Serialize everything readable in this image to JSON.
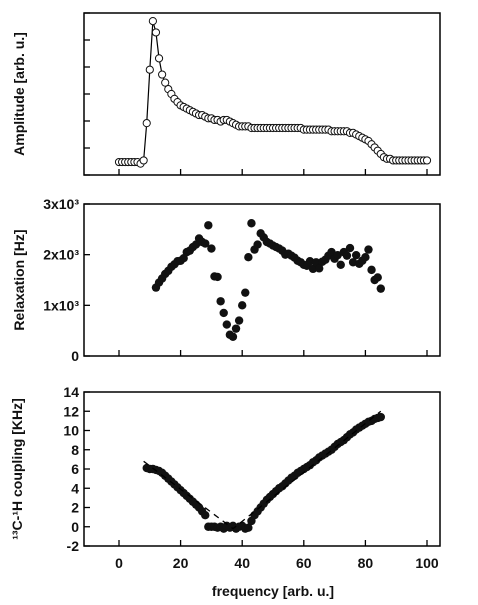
{
  "chart_data": [
    {
      "type": "line",
      "ylabel": "Amplitude  [arb. u.]",
      "xlim": [
        0,
        100
      ],
      "ylim": [
        0,
        1
      ],
      "x_ticks_labeled": false,
      "y_ticks_labeled": false,
      "series": [
        {
          "marker": "open-circle",
          "line": true,
          "points": [
            [
              0,
              0.08
            ],
            [
              1,
              0.08
            ],
            [
              2,
              0.08
            ],
            [
              3,
              0.08
            ],
            [
              4,
              0.08
            ],
            [
              5,
              0.08
            ],
            [
              6,
              0.08
            ],
            [
              7,
              0.07
            ],
            [
              8,
              0.09
            ],
            [
              9,
              0.32
            ],
            [
              10,
              0.65
            ],
            [
              11,
              0.95
            ],
            [
              12,
              0.88
            ],
            [
              13,
              0.72
            ],
            [
              14,
              0.62
            ],
            [
              15,
              0.57
            ],
            [
              16,
              0.53
            ],
            [
              17,
              0.5
            ],
            [
              18,
              0.47
            ],
            [
              19,
              0.45
            ],
            [
              20,
              0.43
            ],
            [
              21,
              0.42
            ],
            [
              22,
              0.41
            ],
            [
              23,
              0.4
            ],
            [
              24,
              0.39
            ],
            [
              25,
              0.38
            ],
            [
              26,
              0.37
            ],
            [
              27,
              0.37
            ],
            [
              28,
              0.36
            ],
            [
              29,
              0.35
            ],
            [
              30,
              0.35
            ],
            [
              31,
              0.34
            ],
            [
              32,
              0.34
            ],
            [
              33,
              0.33
            ],
            [
              34,
              0.34
            ],
            [
              35,
              0.34
            ],
            [
              36,
              0.33
            ],
            [
              37,
              0.32
            ],
            [
              38,
              0.31
            ],
            [
              39,
              0.3
            ],
            [
              40,
              0.3
            ],
            [
              41,
              0.3
            ],
            [
              42,
              0.3
            ],
            [
              43,
              0.29
            ],
            [
              44,
              0.29
            ],
            [
              45,
              0.29
            ],
            [
              46,
              0.29
            ],
            [
              47,
              0.29
            ],
            [
              48,
              0.29
            ],
            [
              49,
              0.29
            ],
            [
              50,
              0.29
            ],
            [
              51,
              0.29
            ],
            [
              52,
              0.29
            ],
            [
              53,
              0.29
            ],
            [
              54,
              0.29
            ],
            [
              55,
              0.29
            ],
            [
              56,
              0.29
            ],
            [
              57,
              0.29
            ],
            [
              58,
              0.29
            ],
            [
              59,
              0.29
            ],
            [
              60,
              0.28
            ],
            [
              61,
              0.28
            ],
            [
              62,
              0.28
            ],
            [
              63,
              0.28
            ],
            [
              64,
              0.28
            ],
            [
              65,
              0.28
            ],
            [
              66,
              0.28
            ],
            [
              67,
              0.28
            ],
            [
              68,
              0.28
            ],
            [
              69,
              0.27
            ],
            [
              70,
              0.27
            ],
            [
              71,
              0.27
            ],
            [
              72,
              0.27
            ],
            [
              73,
              0.27
            ],
            [
              74,
              0.27
            ],
            [
              75,
              0.26
            ],
            [
              76,
              0.26
            ],
            [
              77,
              0.25
            ],
            [
              78,
              0.24
            ],
            [
              79,
              0.23
            ],
            [
              80,
              0.22
            ],
            [
              81,
              0.21
            ],
            [
              82,
              0.19
            ],
            [
              83,
              0.17
            ],
            [
              84,
              0.15
            ],
            [
              85,
              0.13
            ],
            [
              86,
              0.11
            ],
            [
              87,
              0.1
            ],
            [
              88,
              0.1
            ],
            [
              89,
              0.09
            ],
            [
              90,
              0.09
            ],
            [
              91,
              0.09
            ],
            [
              92,
              0.09
            ],
            [
              93,
              0.09
            ],
            [
              94,
              0.09
            ],
            [
              95,
              0.09
            ],
            [
              96,
              0.09
            ],
            [
              97,
              0.09
            ],
            [
              98,
              0.09
            ],
            [
              99,
              0.09
            ],
            [
              100,
              0.09
            ]
          ]
        }
      ]
    },
    {
      "type": "scatter",
      "ylabel": "Relaxation  [Hz]",
      "xlim": [
        0,
        100
      ],
      "ylim": [
        0,
        3000
      ],
      "yticks": [
        {
          "value": 0,
          "label": "0"
        },
        {
          "value": 1000,
          "label": "1x10³"
        },
        {
          "value": 2000,
          "label": "2x10³"
        },
        {
          "value": 3000,
          "label": "3x10³"
        }
      ],
      "series": [
        {
          "marker": "filled-circle",
          "points": [
            [
              12,
              1350
            ],
            [
              13,
              1450
            ],
            [
              14,
              1530
            ],
            [
              15,
              1620
            ],
            [
              16,
              1680
            ],
            [
              17,
              1760
            ],
            [
              18,
              1810
            ],
            [
              19,
              1870
            ],
            [
              20,
              1880
            ],
            [
              21,
              1930
            ],
            [
              22,
              2050
            ],
            [
              23,
              2080
            ],
            [
              24,
              2150
            ],
            [
              25,
              2200
            ],
            [
              26,
              2320
            ],
            [
              27,
              2250
            ],
            [
              28,
              2220
            ],
            [
              29,
              2580
            ],
            [
              30,
              2120
            ],
            [
              31,
              1570
            ],
            [
              32,
              1560
            ],
            [
              33,
              1080
            ],
            [
              34,
              850
            ],
            [
              35,
              620
            ],
            [
              36,
              420
            ],
            [
              37,
              380
            ],
            [
              38,
              540
            ],
            [
              39,
              700
            ],
            [
              40,
              1000
            ],
            [
              41,
              1250
            ],
            [
              42,
              1950
            ],
            [
              43,
              2620
            ],
            [
              44,
              2100
            ],
            [
              45,
              2200
            ],
            [
              46,
              2420
            ],
            [
              47,
              2340
            ],
            [
              48,
              2250
            ],
            [
              49,
              2220
            ],
            [
              50,
              2180
            ],
            [
              51,
              2150
            ],
            [
              52,
              2120
            ],
            [
              53,
              2080
            ],
            [
              54,
              2000
            ],
            [
              55,
              2020
            ],
            [
              56,
              1980
            ],
            [
              57,
              1940
            ],
            [
              58,
              1880
            ],
            [
              59,
              1850
            ],
            [
              60,
              1800
            ],
            [
              61,
              1780
            ],
            [
              62,
              1870
            ],
            [
              63,
              1720
            ],
            [
              64,
              1850
            ],
            [
              65,
              1730
            ],
            [
              66,
              1860
            ],
            [
              67,
              1900
            ],
            [
              68,
              1980
            ],
            [
              69,
              2050
            ],
            [
              70,
              1920
            ],
            [
              71,
              1990
            ],
            [
              72,
              1800
            ],
            [
              73,
              2050
            ],
            [
              74,
              1980
            ],
            [
              75,
              2130
            ],
            [
              76,
              1850
            ],
            [
              77,
              1990
            ],
            [
              78,
              1820
            ],
            [
              79,
              1880
            ],
            [
              80,
              1950
            ],
            [
              81,
              2100
            ],
            [
              82,
              1700
            ],
            [
              83,
              1500
            ],
            [
              84,
              1550
            ],
            [
              85,
              1330
            ]
          ]
        }
      ]
    },
    {
      "type": "scatter",
      "ylabel": "¹³C-¹H coupling  [KHz]",
      "xlabel": "frequency  [arb. u.]",
      "xlim": [
        0,
        100
      ],
      "ylim": [
        -2,
        14
      ],
      "xticks": [
        0,
        20,
        40,
        60,
        80,
        100
      ],
      "yticks": [
        -2,
        0,
        2,
        4,
        6,
        8,
        10,
        12,
        14
      ],
      "series": [
        {
          "marker": "filled-circle",
          "points": [
            [
              9,
              6.1
            ],
            [
              10,
              6
            ],
            [
              11,
              6
            ],
            [
              12,
              5.9
            ],
            [
              13,
              5.8
            ],
            [
              14,
              5.6
            ],
            [
              15,
              5.3
            ],
            [
              16,
              5
            ],
            [
              17,
              4.7
            ],
            [
              18,
              4.4
            ],
            [
              19,
              4.1
            ],
            [
              20,
              3.8
            ],
            [
              21,
              3.5
            ],
            [
              22,
              3.2
            ],
            [
              23,
              2.9
            ],
            [
              24,
              2.6
            ],
            [
              25,
              2.3
            ],
            [
              26,
              2
            ],
            [
              27,
              1.6
            ],
            [
              28,
              1.2
            ],
            [
              29,
              0
            ],
            [
              30,
              0
            ],
            [
              31,
              0
            ],
            [
              32,
              -0.1
            ],
            [
              33,
              0
            ],
            [
              34,
              -0.2
            ],
            [
              35,
              0.1
            ],
            [
              36,
              -0.1
            ],
            [
              37,
              0.1
            ],
            [
              38,
              -0.2
            ],
            [
              39,
              0
            ],
            [
              40,
              0.1
            ],
            [
              41,
              -0.2
            ],
            [
              42,
              -0.1
            ],
            [
              43,
              0.6
            ],
            [
              44,
              1.2
            ],
            [
              45,
              1.6
            ],
            [
              46,
              2
            ],
            [
              47,
              2.4
            ],
            [
              48,
              2.8
            ],
            [
              49,
              3.1
            ],
            [
              50,
              3.4
            ],
            [
              51,
              3.7
            ],
            [
              52,
              4
            ],
            [
              53,
              4.2
            ],
            [
              54,
              4.5
            ],
            [
              55,
              4.8
            ],
            [
              56,
              5.1
            ],
            [
              57,
              5.3
            ],
            [
              58,
              5.6
            ],
            [
              59,
              5.8
            ],
            [
              60,
              6
            ],
            [
              61,
              6.2
            ],
            [
              62,
              6.4
            ],
            [
              63,
              6.7
            ],
            [
              64,
              6.9
            ],
            [
              65,
              7.2
            ],
            [
              66,
              7.4
            ],
            [
              67,
              7.6
            ],
            [
              68,
              7.8
            ],
            [
              69,
              8
            ],
            [
              70,
              8.3
            ],
            [
              71,
              8.6
            ],
            [
              72,
              8.8
            ],
            [
              73,
              9
            ],
            [
              74,
              9.3
            ],
            [
              75,
              9.6
            ],
            [
              76,
              9.8
            ],
            [
              77,
              10.1
            ],
            [
              78,
              10.3
            ],
            [
              79,
              10.5
            ],
            [
              80,
              10.7
            ],
            [
              81,
              10.9
            ],
            [
              82,
              11
            ],
            [
              83,
              11.2
            ],
            [
              84,
              11.3
            ],
            [
              85,
              11.4
            ]
          ]
        },
        {
          "line": "dashed",
          "points": [
            [
              8,
              6.8
            ],
            [
              37,
              -0.2
            ],
            [
              85,
              12
            ]
          ]
        }
      ]
    }
  ]
}
